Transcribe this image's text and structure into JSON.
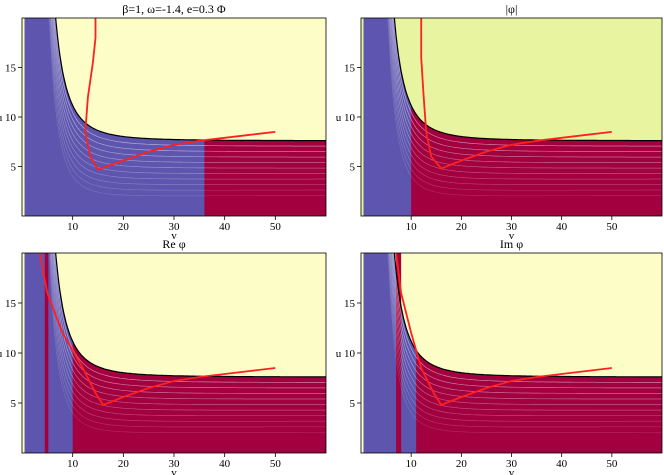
{
  "chart_data": [
    {
      "type": "contour",
      "title": "β=1, ω=-1.4, e=0.3  Φ",
      "xlabel": "v",
      "ylabel": "u",
      "xlim": [
        0,
        60
      ],
      "ylim": [
        0,
        20
      ],
      "x_ticks": [
        10,
        20,
        30,
        40,
        50
      ],
      "y_ticks": [
        5,
        10,
        15
      ],
      "colors": {
        "excluded": "#FDFDC7",
        "low": "#5E55AE",
        "high": "#A2003E",
        "curve": "#FF2020"
      },
      "bands": [
        {
          "type": "fill-right",
          "start_v": 36
        }
      ],
      "curve": [
        [
          14.5,
          20
        ],
        [
          14.5,
          18
        ],
        [
          14,
          15.5
        ],
        [
          13,
          12
        ],
        [
          12.5,
          8.5
        ],
        [
          13.5,
          6
        ],
        [
          15,
          4.7
        ],
        [
          20,
          5.6
        ],
        [
          25,
          6.5
        ],
        [
          30,
          7.2
        ],
        [
          35,
          7.6
        ],
        [
          40,
          7.9
        ],
        [
          45,
          8.2
        ],
        [
          50,
          8.5
        ]
      ]
    },
    {
      "type": "contour",
      "title": "|φ|",
      "xlabel": "v",
      "ylabel": "u",
      "xlim": [
        0,
        60
      ],
      "ylim": [
        0,
        20
      ],
      "x_ticks": [
        10,
        20,
        30,
        40,
        50
      ],
      "y_ticks": [
        5,
        10,
        15
      ],
      "colors": {
        "excluded": "#E8F4A0",
        "low": "#5E55AE",
        "high": "#A2003E",
        "curve": "#FF2020"
      },
      "bands": [
        {
          "type": "fill-right",
          "start_v": 10
        }
      ],
      "curve": [
        [
          12,
          20
        ],
        [
          12,
          16
        ],
        [
          12.5,
          12
        ],
        [
          13,
          8.5
        ],
        [
          14,
          6
        ],
        [
          16,
          4.8
        ],
        [
          20,
          5.6
        ],
        [
          25,
          6.5
        ],
        [
          30,
          7.2
        ],
        [
          35,
          7.6
        ],
        [
          40,
          7.9
        ],
        [
          45,
          8.2
        ],
        [
          50,
          8.5
        ]
      ]
    },
    {
      "type": "contour",
      "title": "Re φ",
      "xlabel": "v",
      "ylabel": "u",
      "xlim": [
        0,
        60
      ],
      "ylim": [
        0,
        20
      ],
      "x_ticks": [
        10,
        20,
        30,
        40,
        50
      ],
      "y_ticks": [
        5,
        10,
        15
      ],
      "colors": {
        "excluded": "#FDFDC7",
        "low": "#5E55AE",
        "high": "#A2003E",
        "curve": "#FF2020"
      },
      "bands": [
        {
          "type": "strip",
          "from": 4.5,
          "to": 5.2
        },
        {
          "type": "fill-right",
          "start_v": 10
        }
      ],
      "curve": [
        [
          3.5,
          20
        ],
        [
          5,
          16
        ],
        [
          8,
          12
        ],
        [
          12,
          8.5
        ],
        [
          14.5,
          6
        ],
        [
          16,
          4.8
        ],
        [
          20,
          5.6
        ],
        [
          25,
          6.5
        ],
        [
          30,
          7.2
        ],
        [
          35,
          7.6
        ],
        [
          40,
          7.9
        ],
        [
          45,
          8.2
        ],
        [
          50,
          8.5
        ]
      ]
    },
    {
      "type": "contour",
      "title": "Im φ",
      "xlabel": "v",
      "ylabel": "u",
      "xlim": [
        0,
        60
      ],
      "ylim": [
        0,
        20
      ],
      "x_ticks": [
        10,
        20,
        30,
        40,
        50
      ],
      "y_ticks": [
        5,
        10,
        15
      ],
      "colors": {
        "excluded": "#FDFDC7",
        "low": "#5E55AE",
        "high": "#A2003E",
        "curve": "#FF2020"
      },
      "bands": [
        {
          "type": "strip",
          "from": 7,
          "to": 8
        },
        {
          "type": "fill-right",
          "start_v": 11
        }
      ],
      "curve": [
        [
          7,
          20
        ],
        [
          8,
          16
        ],
        [
          10,
          12
        ],
        [
          12,
          8.5
        ],
        [
          14.5,
          6
        ],
        [
          16,
          4.8
        ],
        [
          20,
          5.6
        ],
        [
          25,
          6.5
        ],
        [
          30,
          7.2
        ],
        [
          35,
          7.6
        ],
        [
          40,
          7.9
        ],
        [
          45,
          8.2
        ],
        [
          50,
          8.5
        ]
      ]
    }
  ]
}
